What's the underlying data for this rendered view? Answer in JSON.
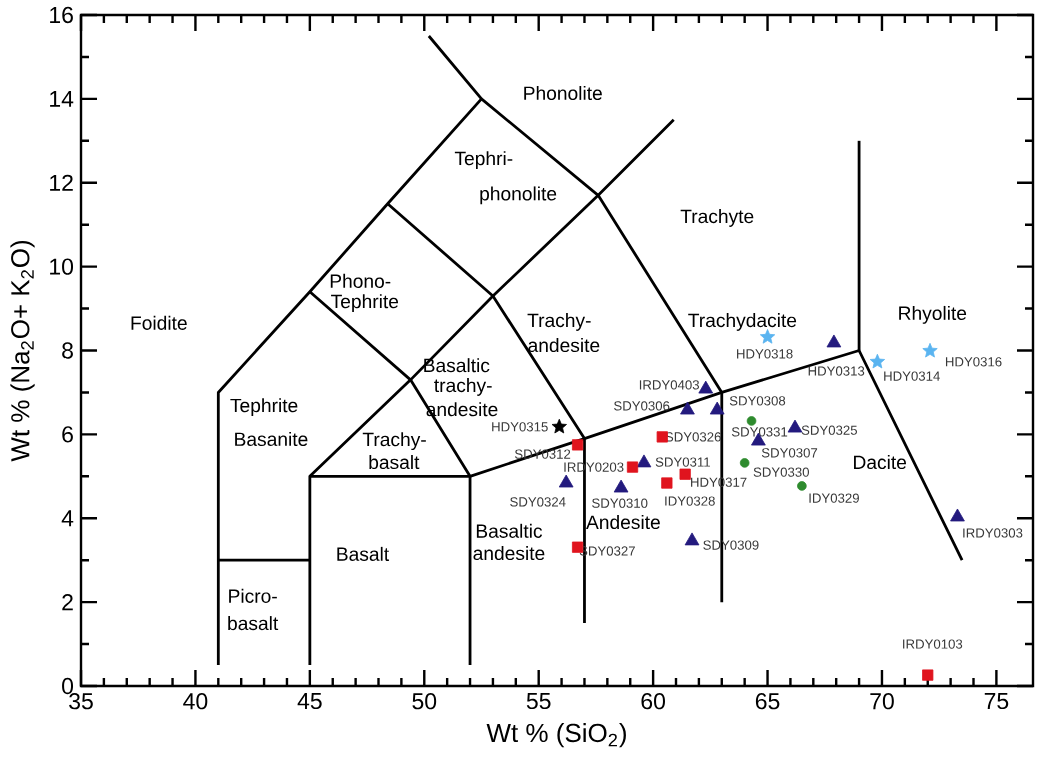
{
  "chart_data": {
    "type": "scatter",
    "xlabel": "Wt % (SiO$_{2}$)",
    "ylabel": "Wt % (Na$_{2}$O+ K$_{2}$O)",
    "xlim": [
      35,
      76.6
    ],
    "ylim": [
      0,
      16
    ],
    "xticks": [
      35,
      40,
      45,
      50,
      55,
      60,
      65,
      70,
      75
    ],
    "yticks": [
      0,
      2,
      4,
      6,
      8,
      10,
      12,
      14,
      16
    ],
    "series": [
      {
        "type": "line",
        "color": "#000000",
        "x": [
          41,
          41,
          45,
          48.4,
          52.5
        ],
        "values": [
          0.5,
          7,
          9.4,
          11.5,
          14
        ]
      },
      {
        "type": "line",
        "color": "#000000",
        "x": [
          50.2,
          52.5,
          57.6,
          63,
          63
        ],
        "values": [
          15.5,
          14,
          11.7,
          7,
          2
        ]
      },
      {
        "type": "line",
        "color": "#000000",
        "x": [
          48.4,
          53,
          57.6,
          60.9
        ],
        "values": [
          11.5,
          9.3,
          11.7,
          13.5
        ]
      },
      {
        "type": "line",
        "color": "#000000",
        "x": [
          45,
          49.4,
          53
        ],
        "values": [
          9.4,
          7.3,
          9.3
        ]
      },
      {
        "type": "line",
        "color": "#000000",
        "x": [
          49.4,
          52,
          57,
          63,
          69,
          73.5
        ],
        "values": [
          7.3,
          5,
          5.9,
          7,
          8,
          3
        ]
      },
      {
        "type": "line",
        "color": "#000000",
        "x": [
          53,
          57,
          57
        ],
        "values": [
          9.3,
          5.9,
          1.5
        ]
      },
      {
        "type": "line",
        "color": "#000000",
        "x": [
          41,
          45
        ],
        "values": [
          3,
          3
        ]
      },
      {
        "type": "line",
        "color": "#000000",
        "x": [
          45,
          45,
          49.4
        ],
        "values": [
          0.5,
          5,
          7.3
        ]
      },
      {
        "type": "line",
        "color": "#000000",
        "x": [
          45,
          52
        ],
        "values": [
          5,
          5
        ]
      },
      {
        "type": "line",
        "color": "#000000",
        "x": [
          52,
          52
        ],
        "values": [
          0.5,
          5
        ]
      },
      {
        "type": "line",
        "color": "#000000",
        "x": [
          69,
          69
        ],
        "values": [
          8,
          13
        ]
      },
      {
        "marker": "triangle",
        "color": "#231a7e",
        "x": [
          62.3,
          61.5,
          62.8,
          66.2,
          64.6,
          59.6,
          56.2,
          58.6,
          61.7,
          67.9,
          73.3
        ],
        "values": [
          7.08,
          6.58,
          6.58,
          6.15,
          5.84,
          5.32,
          4.84,
          4.72,
          3.46,
          8.18,
          4.03
        ],
        "value_labels": [
          "IRDY0403",
          "SDY0306",
          "SDY0308",
          "SDY0325",
          "SDY0307",
          "SDY0311",
          "SDY0324",
          "SDY0310",
          "SDY0309",
          "HDY0313",
          "IRDY0303"
        ]
      },
      {
        "marker": "square",
        "color": "#e0141e",
        "x": [
          60.4,
          56.7,
          59.1,
          61.4,
          60.6,
          56.7,
          72.0
        ],
        "values": [
          5.94,
          5.75,
          5.22,
          5.05,
          4.84,
          3.31,
          0.26
        ],
        "value_labels": [
          "SDY0326",
          "SDY0312",
          "IRDY0203",
          "HDY0317",
          "IDY0328",
          "SDY0327",
          "IRDY0103"
        ]
      },
      {
        "marker": "circle",
        "color": "#2e8b2e",
        "x": [
          64.3,
          64.0,
          66.5
        ],
        "values": [
          6.32,
          5.32,
          4.77
        ],
        "value_labels": [
          "SDY0331",
          "SDY0330",
          "IDY0329"
        ]
      },
      {
        "marker": "star",
        "color": "#5ab4f0",
        "x": [
          65.0,
          69.8,
          72.1
        ],
        "values": [
          8.32,
          7.73,
          7.99
        ],
        "value_labels": [
          "HDY0318",
          "HDY0314",
          "HDY0316"
        ]
      },
      {
        "marker": "star",
        "color": "#000000",
        "x": [
          55.9
        ],
        "values": [
          6.18
        ],
        "value_labels": [
          "HDY0315"
        ]
      }
    ],
    "annotations": [
      "Foidite",
      "Phonolite",
      "Tephri-",
      "phonolite",
      "Trachyte",
      "Phono-",
      "Tephrite",
      "Trachy-",
      "andesite",
      "Trachydacite",
      "Rhyolite",
      "Basaltic",
      "trachy-",
      "andesite",
      "Tephrite",
      "Basanite",
      "Trachy-",
      "basalt",
      "Dacite",
      "Andesite",
      "Basaltic",
      "andesite",
      "Basalt",
      "Picro-",
      "basalt"
    ]
  }
}
